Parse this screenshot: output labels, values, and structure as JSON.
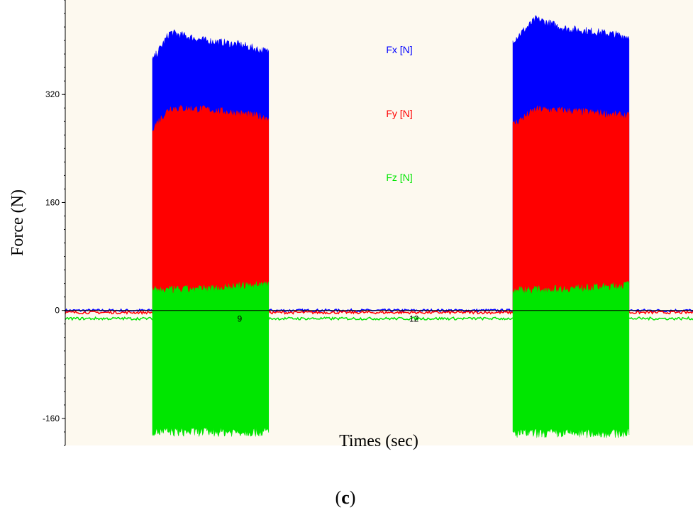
{
  "chart_data": {
    "type": "area",
    "title": "",
    "xlabel": "Times (sec)",
    "ylabel": "Force (N)",
    "panel_label": [
      "(",
      "c",
      ")"
    ],
    "xlim": [
      6.0,
      16.8
    ],
    "ylim": [
      -200,
      460
    ],
    "y_ticks": [
      {
        "value": -160,
        "label": "-160"
      },
      {
        "value": 0,
        "label": "0"
      },
      {
        "value": 160,
        "label": "160"
      },
      {
        "value": 320,
        "label": "320"
      }
    ],
    "x_ticks": [
      {
        "value": 9,
        "label": "9"
      },
      {
        "value": 12,
        "label": "12"
      }
    ],
    "background": "#fdf9ef",
    "grid": false,
    "legend_position": "inside-right",
    "series": [
      {
        "name": "Fx [N]",
        "color": "#0000ff",
        "baseline": 0,
        "bursts": [
          {
            "start": 7.5,
            "end": 9.5,
            "envelope": [
              [
                7.5,
                370
              ],
              [
                7.8,
                412
              ],
              [
                8.4,
                400
              ],
              [
                9.0,
                394
              ],
              [
                9.45,
                384
              ]
            ],
            "lower": 0
          },
          {
            "start": 13.7,
            "end": 15.7,
            "envelope": [
              [
                13.7,
                400
              ],
              [
                14.1,
                432
              ],
              [
                14.6,
                418
              ],
              [
                15.2,
                412
              ],
              [
                15.68,
                406
              ]
            ],
            "lower": 0
          }
        ]
      },
      {
        "name": "Fy [N]",
        "color": "#ff0000",
        "baseline": -3,
        "bursts": [
          {
            "start": 7.5,
            "end": 9.5,
            "envelope": [
              [
                7.5,
                270
              ],
              [
                7.8,
                300
              ],
              [
                8.4,
                298
              ],
              [
                9.0,
                292
              ],
              [
                9.45,
                286
              ]
            ],
            "lower": 0
          },
          {
            "start": 13.7,
            "end": 15.7,
            "envelope": [
              [
                13.7,
                275
              ],
              [
                14.1,
                298
              ],
              [
                14.6,
                296
              ],
              [
                15.2,
                292
              ],
              [
                15.68,
                288
              ]
            ],
            "lower": 0
          }
        ]
      },
      {
        "name": "Fz [N]",
        "color": "#00e600",
        "baseline": -12,
        "bursts": [
          {
            "start": 7.5,
            "end": 9.5,
            "envelope": [
              [
                7.5,
                30
              ],
              [
                8.4,
                32
              ],
              [
                9.3,
                38
              ],
              [
                9.45,
                40
              ]
            ],
            "lower": -180
          },
          {
            "start": 13.7,
            "end": 15.7,
            "envelope": [
              [
                13.7,
                30
              ],
              [
                14.6,
                32
              ],
              [
                15.5,
                36
              ],
              [
                15.68,
                38
              ]
            ],
            "lower": -182
          }
        ]
      }
    ]
  }
}
